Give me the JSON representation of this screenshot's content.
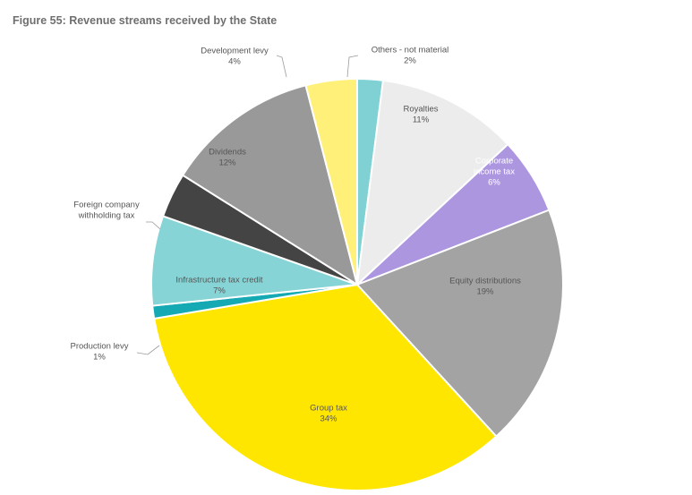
{
  "figure_title": "Figure 55: Revenue streams received by the State",
  "chart_data": {
    "type": "pie",
    "title": "Figure 55: Revenue streams received by the State",
    "slices": [
      {
        "label": "Others - not material",
        "percent_label": "2%",
        "value": 2,
        "color": "#7fd1d3",
        "label_color": "#555555"
      },
      {
        "label": "Royalties",
        "percent_label": "11%",
        "value": 11,
        "color": "#ececec",
        "label_color": "#555555"
      },
      {
        "label": "Corporate income tax",
        "percent_label": "6%",
        "value": 6,
        "color": "#ad96e0",
        "label_color": "#ffffff"
      },
      {
        "label": "Equity distributions",
        "percent_label": "19%",
        "value": 19,
        "color": "#a3a3a3",
        "label_color": "#555555"
      },
      {
        "label": "Group tax",
        "percent_label": "34%",
        "value": 34,
        "color": "#ffe600",
        "label_color": "#555555"
      },
      {
        "label": "Production levy",
        "percent_label": "1%",
        "value": 1,
        "color": "#15a9b4",
        "label_color": "#555555"
      },
      {
        "label": "Infrastructure tax credit",
        "percent_label": "7%",
        "value": 7,
        "color": "#87d4d6",
        "label_color": "#555555"
      },
      {
        "label": "Foreign company withholding tax",
        "percent_label": "",
        "value": 3.5,
        "color": "#444444",
        "label_color": "#555555"
      },
      {
        "label": "Dividends",
        "percent_label": "12%",
        "value": 12,
        "color": "#999999",
        "label_color": "#555555"
      },
      {
        "label": "Development levy",
        "percent_label": "4%",
        "value": 4,
        "color": "#fff07a",
        "label_color": "#555555"
      }
    ]
  }
}
